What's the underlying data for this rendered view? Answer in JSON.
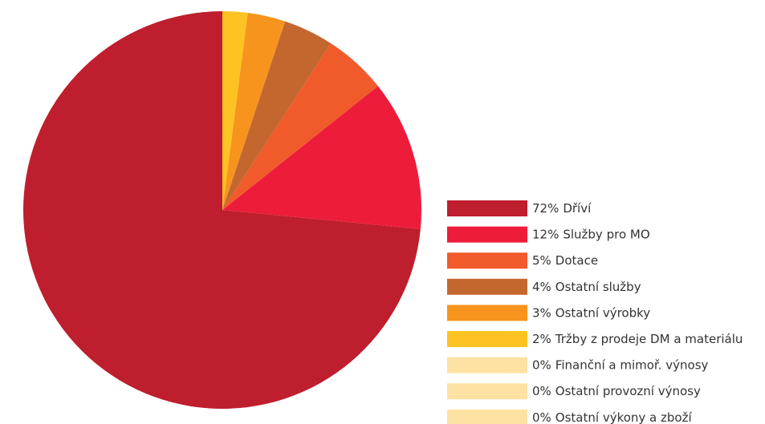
{
  "chart_data": {
    "type": "pie",
    "categories": [
      "Dříví",
      "Služby pro MO",
      "Dotace",
      "Ostatní služby",
      "Ostatní výrobky",
      "Tržby z prodeje DM a materiálu",
      "Finanční a mimoř. výnosy",
      "Ostatní provozní výnosy",
      "Ostatní výkony a zboží"
    ],
    "values": [
      72,
      12,
      5,
      4,
      3,
      2,
      0,
      0,
      0
    ],
    "value_labels": [
      "72%",
      "12%",
      "5%",
      "4%",
      "3%",
      "2%",
      "0%",
      "0%",
      "0%"
    ],
    "colors": [
      "#be1e2d",
      "#ed1c3b",
      "#f15a2b",
      "#c4672f",
      "#f7941d",
      "#fdc322",
      "#fee2a3",
      "#fee2a3",
      "#fee2a3"
    ]
  }
}
